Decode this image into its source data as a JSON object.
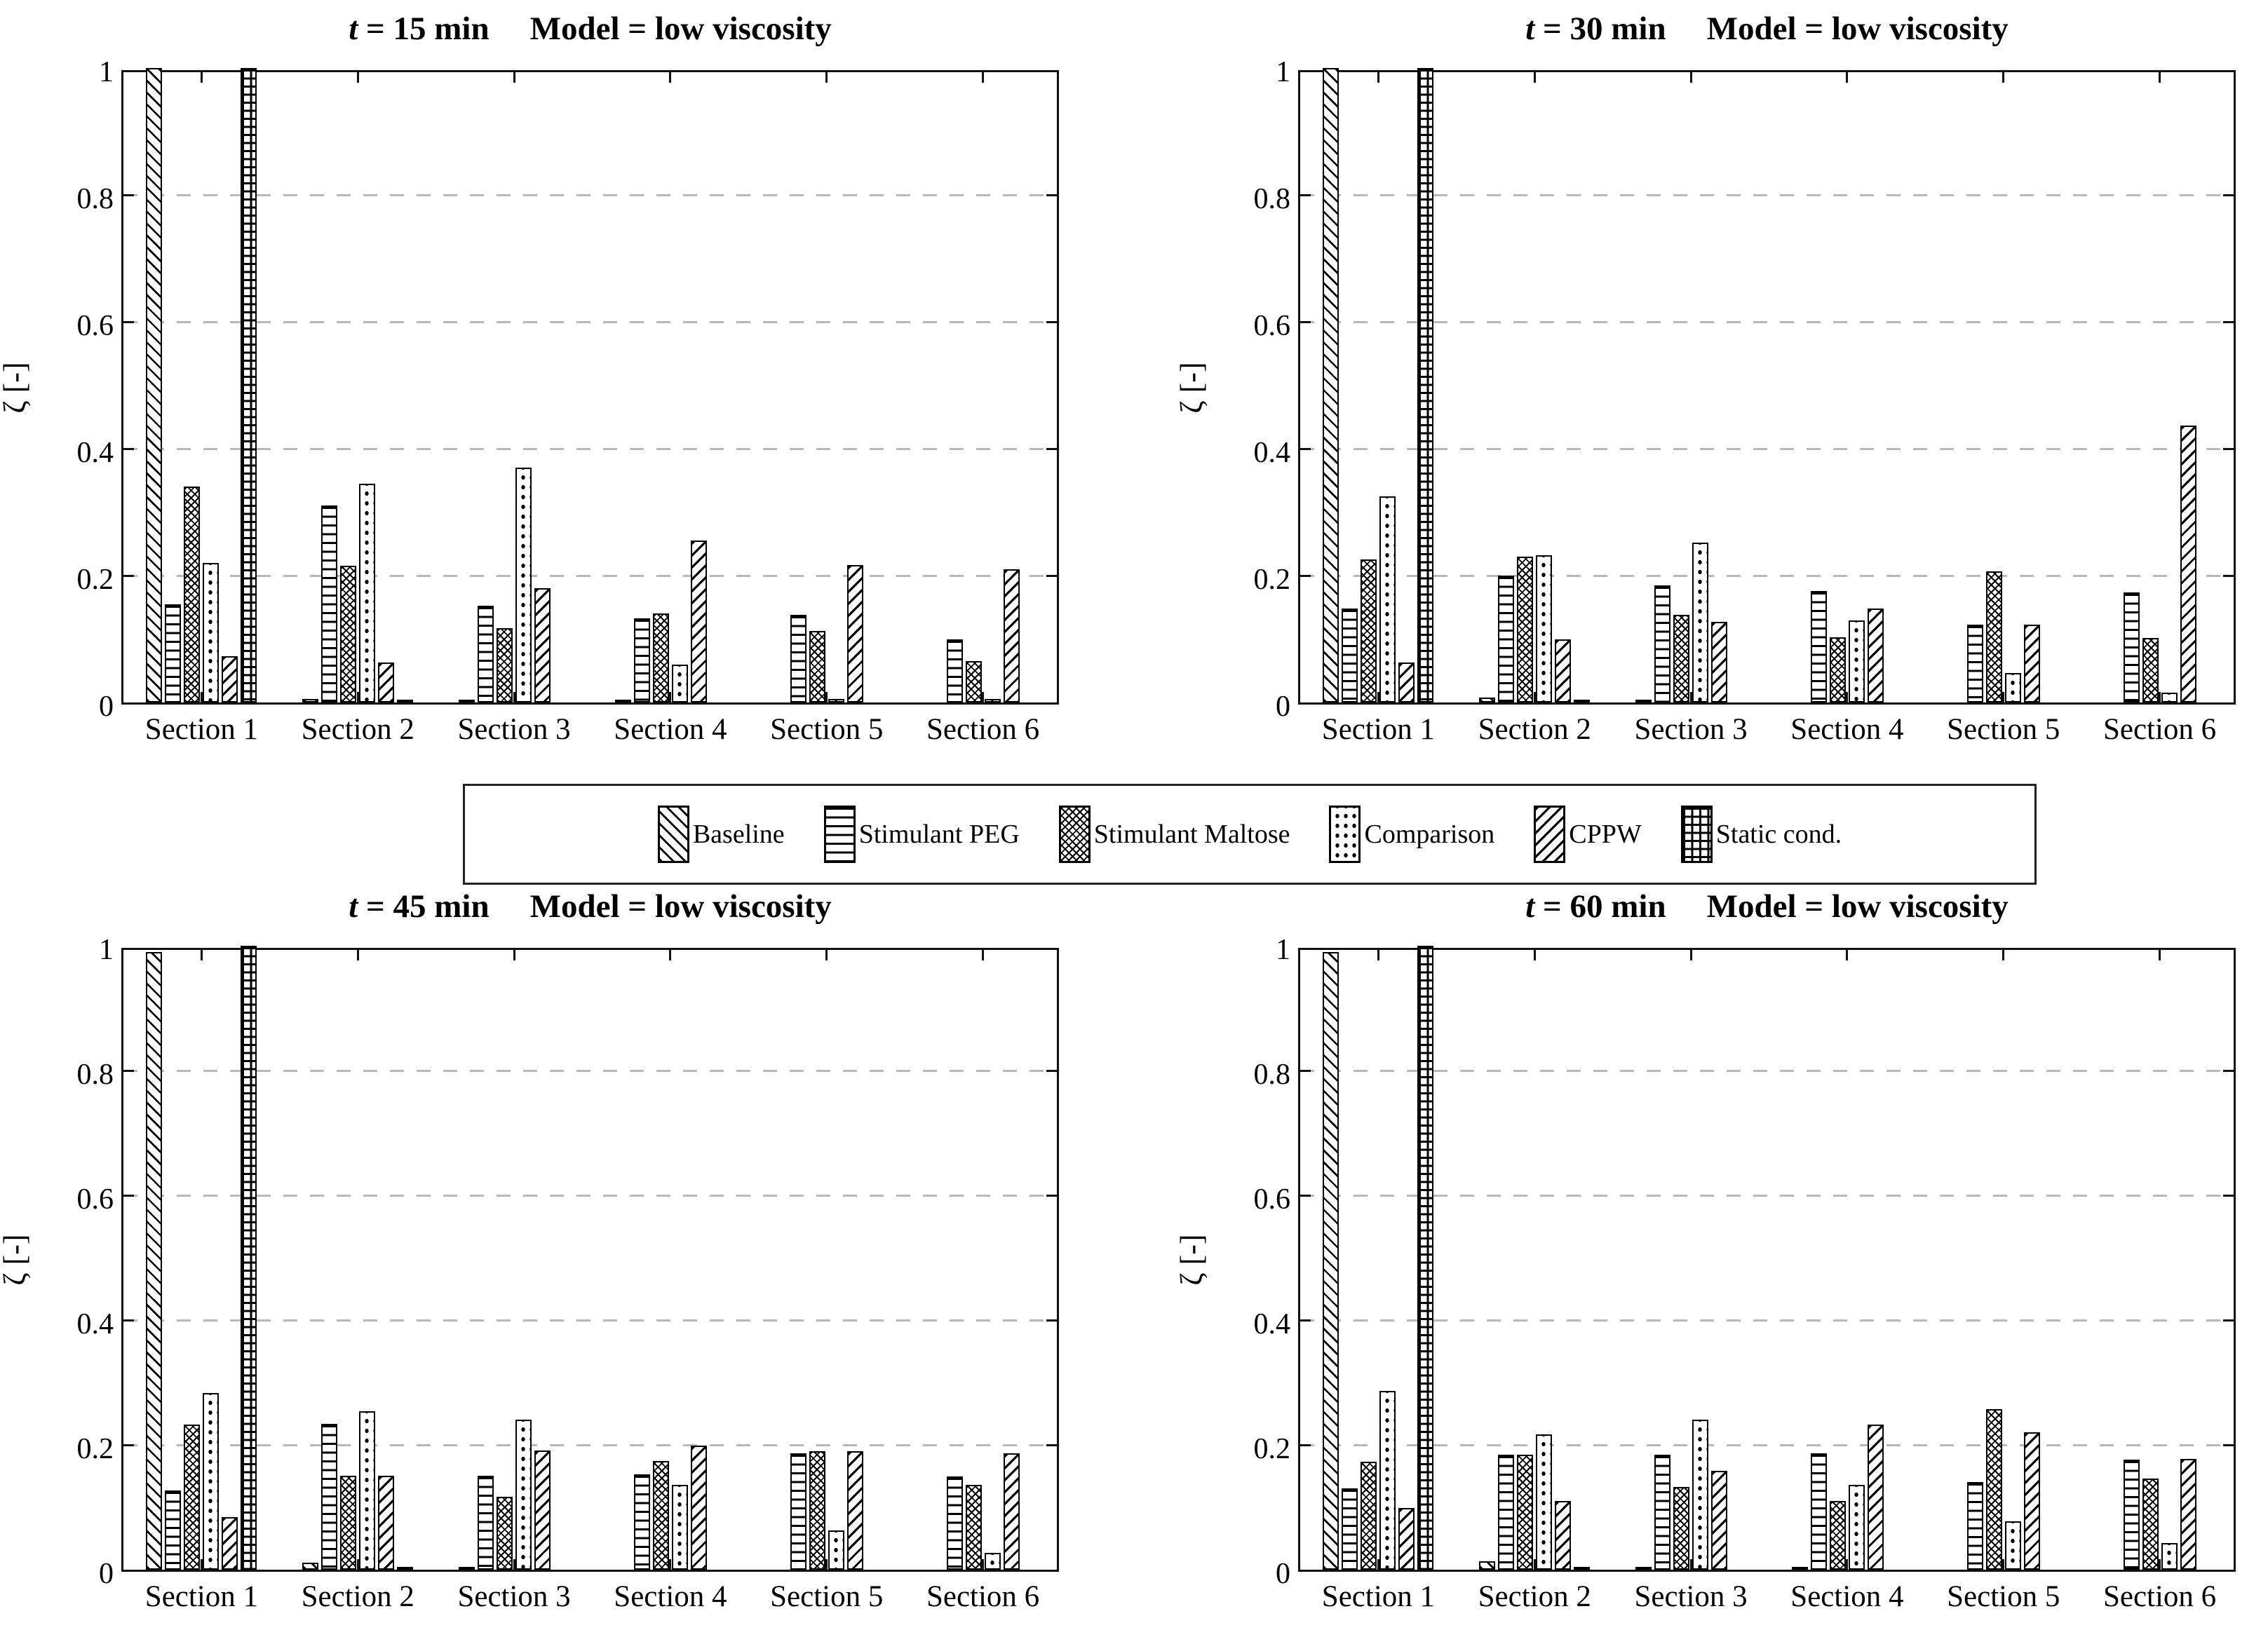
{
  "y_axis": {
    "label": "ζ [-]",
    "tick_labels": [
      "0",
      "0.2",
      "0.4",
      "0.6",
      "0.8",
      "1"
    ],
    "ylim": [
      0,
      1
    ]
  },
  "grid": {
    "dashed": true,
    "color": "#b8b8b8",
    "levels": [
      0.2,
      0.4,
      0.6,
      0.8
    ]
  },
  "legend": {
    "items": [
      {
        "label": "Baseline",
        "pattern": "baseline",
        "swatch_icon": "diagonal-backslash-hatch"
      },
      {
        "label": "Stimulant PEG",
        "pattern": "peg",
        "swatch_icon": "horizontal-lines-hatch"
      },
      {
        "label": "Stimulant Maltose",
        "pattern": "maltose",
        "swatch_icon": "dense-crosshatch"
      },
      {
        "label": "Comparison",
        "pattern": "comparison",
        "swatch_icon": "dot-grid"
      },
      {
        "label": "CPPW",
        "pattern": "cppw",
        "swatch_icon": "diagonal-slash-hatch"
      },
      {
        "label": "Static cond.",
        "pattern": "static",
        "swatch_icon": "square-grid-hatch"
      }
    ]
  },
  "chart_data": [
    {
      "type": "bar",
      "time_label": "t = 15 min",
      "model_label": "Model = low viscosity",
      "ylabel": "ζ [-]",
      "ylim": [
        0,
        1
      ],
      "categories": [
        "Section 1",
        "Section 2",
        "Section 3",
        "Section 4",
        "Section 5",
        "Section 6"
      ],
      "series": [
        {
          "name": "Baseline",
          "values": [
            1.0,
            0.005,
            0.004,
            0.004,
            0.0,
            0.0
          ]
        },
        {
          "name": "Stimulant PEG",
          "values": [
            0.155,
            0.31,
            0.152,
            0.133,
            0.138,
            0.1
          ]
        },
        {
          "name": "Stimulant Maltose",
          "values": [
            0.34,
            0.215,
            0.117,
            0.14,
            0.113,
            0.065
          ]
        },
        {
          "name": "Comparison",
          "values": [
            0.22,
            0.345,
            0.37,
            0.06,
            0.006,
            0.006
          ]
        },
        {
          "name": "CPPW",
          "values": [
            0.073,
            0.063,
            0.18,
            0.255,
            0.217,
            0.21
          ]
        },
        {
          "name": "Static cond.",
          "values": [
            1.0,
            0.004,
            0.0,
            0.0,
            0.0,
            0.0
          ]
        }
      ]
    },
    {
      "type": "bar",
      "time_label": "t = 30 min",
      "model_label": "Model = low viscosity",
      "ylabel": "ζ [-]",
      "ylim": [
        0,
        1
      ],
      "categories": [
        "Section 1",
        "Section 2",
        "Section 3",
        "Section 4",
        "Section 5",
        "Section 6"
      ],
      "series": [
        {
          "name": "Baseline",
          "values": [
            1.0,
            0.008,
            0.004,
            0.0,
            0.0,
            0.0
          ]
        },
        {
          "name": "Stimulant PEG",
          "values": [
            0.148,
            0.2,
            0.184,
            0.176,
            0.123,
            0.173
          ]
        },
        {
          "name": "Stimulant Maltose",
          "values": [
            0.225,
            0.23,
            0.138,
            0.103,
            0.207,
            0.102
          ]
        },
        {
          "name": "Comparison",
          "values": [
            0.325,
            0.232,
            0.252,
            0.129,
            0.046,
            0.015
          ]
        },
        {
          "name": "CPPW",
          "values": [
            0.063,
            0.1,
            0.127,
            0.148,
            0.123,
            0.436
          ]
        },
        {
          "name": "Static cond.",
          "values": [
            1.0,
            0.004,
            0.0,
            0.0,
            0.0,
            0.0
          ]
        }
      ]
    },
    {
      "type": "bar",
      "time_label": "t = 45 min",
      "model_label": "Model = low viscosity",
      "ylabel": "ζ [-]",
      "ylim": [
        0,
        1
      ],
      "categories": [
        "Section 1",
        "Section 2",
        "Section 3",
        "Section 4",
        "Section 5",
        "Section 6"
      ],
      "series": [
        {
          "name": "Baseline",
          "values": [
            0.99,
            0.011,
            0.004,
            0.0,
            0.0,
            0.0
          ]
        },
        {
          "name": "Stimulant PEG",
          "values": [
            0.127,
            0.234,
            0.151,
            0.153,
            0.186,
            0.149
          ]
        },
        {
          "name": "Stimulant Maltose",
          "values": [
            0.233,
            0.151,
            0.117,
            0.174,
            0.19,
            0.136
          ]
        },
        {
          "name": "Comparison",
          "values": [
            0.283,
            0.254,
            0.241,
            0.136,
            0.063,
            0.027
          ]
        },
        {
          "name": "CPPW",
          "values": [
            0.084,
            0.151,
            0.191,
            0.199,
            0.19,
            0.186
          ]
        },
        {
          "name": "Static cond.",
          "values": [
            1.0,
            0.004,
            0.0,
            0.0,
            0.0,
            0.0
          ]
        }
      ]
    },
    {
      "type": "bar",
      "time_label": "t = 60 min",
      "model_label": "Model = low viscosity",
      "ylabel": "ζ [-]",
      "ylim": [
        0,
        1
      ],
      "categories": [
        "Section 1",
        "Section 2",
        "Section 3",
        "Section 4",
        "Section 5",
        "Section 6"
      ],
      "series": [
        {
          "name": "Baseline",
          "values": [
            0.99,
            0.014,
            0.004,
            0.005,
            0.0,
            0.0
          ]
        },
        {
          "name": "Stimulant PEG",
          "values": [
            0.13,
            0.184,
            0.184,
            0.186,
            0.14,
            0.176
          ]
        },
        {
          "name": "Stimulant Maltose",
          "values": [
            0.173,
            0.184,
            0.133,
            0.11,
            0.257,
            0.146
          ]
        },
        {
          "name": "Comparison",
          "values": [
            0.287,
            0.217,
            0.24,
            0.136,
            0.077,
            0.043
          ]
        },
        {
          "name": "CPPW",
          "values": [
            0.099,
            0.11,
            0.159,
            0.233,
            0.22,
            0.177
          ]
        },
        {
          "name": "Static cond.",
          "values": [
            1.0,
            0.004,
            0.0,
            0.0,
            0.0,
            0.0
          ]
        }
      ]
    }
  ]
}
